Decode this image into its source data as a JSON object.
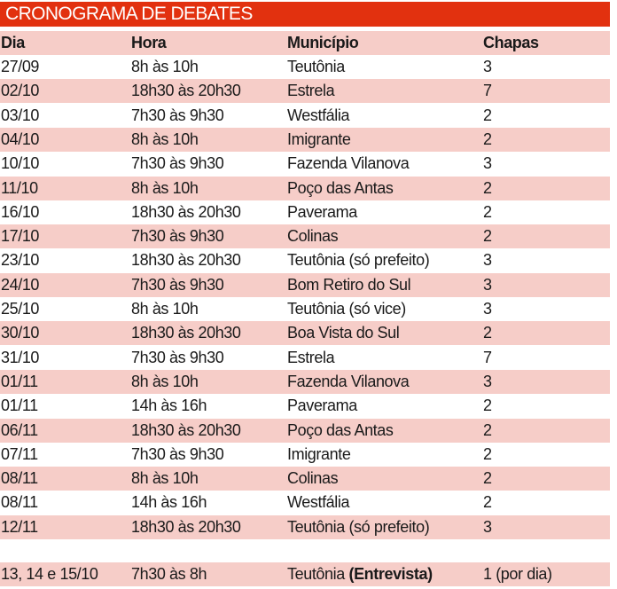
{
  "title": "CRONOGRAMA DE DEBATES",
  "headers": [
    "Dia",
    "Hora",
    "Município",
    "Chapas"
  ],
  "rows": [
    [
      "27/09",
      "8h às 10h",
      "Teutônia",
      "3"
    ],
    [
      "02/10",
      "18h30 às 20h30",
      "Estrela",
      "7"
    ],
    [
      "03/10",
      "7h30 às 9h30",
      "Westfália",
      "2"
    ],
    [
      "04/10",
      "8h às 10h",
      "Imigrante",
      "2"
    ],
    [
      "10/10",
      "7h30 às 9h30",
      "Fazenda Vilanova",
      "3"
    ],
    [
      "11/10",
      "8h às 10h",
      "Poço das Antas",
      "2"
    ],
    [
      "16/10",
      "18h30 às 20h30",
      "Paverama",
      "2"
    ],
    [
      "17/10",
      "7h30 às 9h30",
      "Colinas",
      "2"
    ],
    [
      "23/10",
      "18h30 às 20h30",
      "Teutônia (só prefeito)",
      "3"
    ],
    [
      "24/10",
      "7h30 às 9h30",
      "Bom Retiro do Sul",
      "3"
    ],
    [
      "25/10",
      "8h às 10h",
      "Teutônia (só vice)",
      "3"
    ],
    [
      "30/10",
      "18h30 às 20h30",
      "Boa Vista do Sul",
      "2"
    ],
    [
      "31/10",
      "7h30 às 9h30",
      "Estrela",
      "7"
    ],
    [
      "01/11",
      "8h às 10h",
      "Fazenda Vilanova",
      "3"
    ],
    [
      "01/11",
      "14h às 16h",
      "Paverama",
      "2"
    ],
    [
      "06/11",
      "18h30 às 20h30",
      "Poço das Antas",
      "2"
    ],
    [
      "07/11",
      "7h30 às 9h30",
      "Imigrante",
      "2"
    ],
    [
      "08/11",
      "8h às 10h",
      "Colinas",
      "2"
    ],
    [
      "08/11",
      "14h às 16h",
      "Westfália",
      "2"
    ],
    [
      "12/11",
      "18h30 às 20h30",
      "Teutônia (só prefeito)",
      "3"
    ]
  ],
  "extra_row": {
    "dia": "13, 14 e 15/10",
    "hora": "7h30 às 8h",
    "municipio": "Teutônia",
    "municipio_bold": "(Entrevista)",
    "chapas": "1 (por dia)"
  },
  "colors": {
    "title_bg": "#e2310f",
    "stripe": "#f6cdc8"
  }
}
